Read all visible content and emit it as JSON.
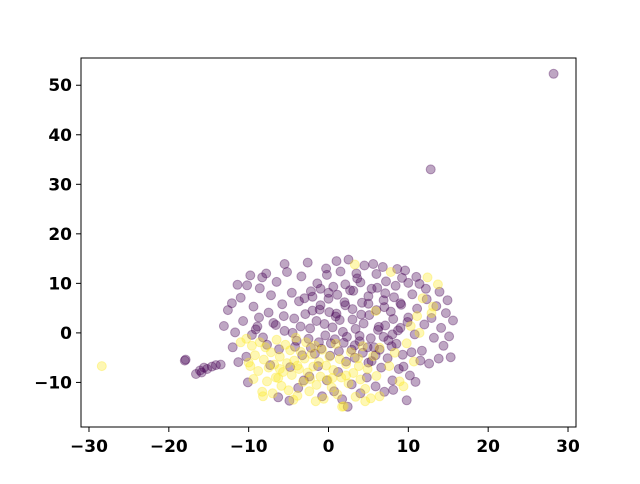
{
  "chart_data": {
    "type": "scatter",
    "title": "",
    "xlabel": "",
    "ylabel": "",
    "xlim": [
      -31,
      31
    ],
    "ylim": [
      -19,
      55.5
    ],
    "x_ticks": [
      -30,
      -20,
      -10,
      0,
      10,
      20,
      30
    ],
    "x_tick_labels": [
      "−30",
      "−20",
      "−10",
      "0",
      "10",
      "20",
      "30"
    ],
    "y_ticks": [
      -10,
      0,
      10,
      20,
      30,
      40,
      50
    ],
    "y_tick_labels": [
      "−10",
      "0",
      "10",
      "20",
      "30",
      "40",
      "50"
    ],
    "grid": false,
    "legend": "none",
    "point_alpha": 0.35,
    "colors": {
      "class_0": "#440154",
      "class_1": "#fde725"
    },
    "series": [
      {
        "color": "#440154",
        "points": [
          [
            28.2,
            52.3
          ],
          [
            12.8,
            33.0
          ],
          [
            -18.0,
            -5.6
          ],
          [
            -17.9,
            -5.4
          ],
          [
            -16.1,
            -7.6
          ],
          [
            -15.6,
            -7.0
          ],
          [
            -15.2,
            -7.3
          ],
          [
            -14.6,
            -6.8
          ],
          [
            -14.1,
            -6.5
          ],
          [
            -13.5,
            -6.4
          ],
          [
            -16.6,
            -8.3
          ],
          [
            -15.9,
            -8.0
          ],
          [
            -13.1,
            1.4
          ],
          [
            -12.6,
            4.6
          ],
          [
            -12.0,
            -2.9
          ],
          [
            -11.4,
            9.7
          ],
          [
            -11.7,
            0.1
          ],
          [
            -11.0,
            7.1
          ],
          [
            -10.3,
            -4.8
          ],
          [
            -10.7,
            2.4
          ],
          [
            -9.8,
            11.6
          ],
          [
            -9.4,
            5.3
          ],
          [
            -9.1,
            0.7
          ],
          [
            -8.6,
            9.0
          ],
          [
            -8.2,
            -0.9
          ],
          [
            -7.8,
            12.0
          ],
          [
            -7.5,
            4.1
          ],
          [
            -7.2,
            7.6
          ],
          [
            -6.9,
            2.0
          ],
          [
            -6.5,
            10.3
          ],
          [
            -6.2,
            -3.3
          ],
          [
            -5.8,
            5.8
          ],
          [
            -5.5,
            0.4
          ],
          [
            -5.2,
            12.3
          ],
          [
            -4.9,
            -13.7
          ],
          [
            -4.6,
            8.1
          ],
          [
            -4.3,
            2.9
          ],
          [
            -4.0,
            -1.6
          ],
          [
            -3.7,
            6.4
          ],
          [
            -3.4,
            11.4
          ],
          [
            -3.1,
            -9.6
          ],
          [
            -2.9,
            3.8
          ],
          [
            -2.6,
            14.2
          ],
          [
            -2.3,
            0.9
          ],
          [
            -2.0,
            7.3
          ],
          [
            -1.7,
            -4.2
          ],
          [
            -1.4,
            10.0
          ],
          [
            -1.1,
            4.7
          ],
          [
            -0.8,
            -12.8
          ],
          [
            -0.5,
            1.8
          ],
          [
            -0.3,
            13.0
          ],
          [
            0.0,
            6.9
          ],
          [
            0.3,
            -2.1
          ],
          [
            0.6,
            9.3
          ],
          [
            0.9,
            3.3
          ],
          [
            1.2,
            -7.9
          ],
          [
            1.5,
            12.4
          ],
          [
            1.8,
            0.2
          ],
          [
            2.1,
            5.6
          ],
          [
            2.4,
            -14.9
          ],
          [
            2.7,
            8.6
          ],
          [
            3.0,
            2.7
          ],
          [
            3.3,
            -5.0
          ],
          [
            3.6,
            11.0
          ],
          [
            3.9,
            -0.6
          ],
          [
            4.2,
            6.1
          ],
          [
            4.5,
            13.6
          ],
          [
            4.8,
            -9.0
          ],
          [
            5.1,
            3.6
          ],
          [
            5.4,
            8.9
          ],
          [
            5.7,
            -2.9
          ],
          [
            6.0,
            11.9
          ],
          [
            6.3,
            1.2
          ],
          [
            6.6,
            -7.0
          ],
          [
            6.9,
            6.6
          ],
          [
            7.2,
            10.4
          ],
          [
            7.5,
            -1.5
          ],
          [
            7.8,
            4.3
          ],
          [
            8.1,
            -11.5
          ],
          [
            8.4,
            9.5
          ],
          [
            8.7,
            0.5
          ],
          [
            9.0,
            6.0
          ],
          [
            9.3,
            -4.4
          ],
          [
            9.6,
            12.6
          ],
          [
            9.9,
            2.2
          ],
          [
            10.2,
            -8.6
          ],
          [
            10.5,
            7.8
          ],
          [
            10.8,
            -0.3
          ],
          [
            11.1,
            4.9
          ],
          [
            11.4,
            9.9
          ],
          [
            11.7,
            -3.6
          ],
          [
            12.0,
            1.7
          ],
          [
            12.3,
            6.8
          ],
          [
            12.6,
            -6.2
          ],
          [
            12.9,
            3.0
          ],
          [
            13.2,
            -1.0
          ],
          [
            13.5,
            5.4
          ],
          [
            13.8,
            -5.2
          ],
          [
            14.1,
            1.0
          ],
          [
            14.4,
            -2.6
          ],
          [
            14.7,
            4.0
          ],
          [
            15.1,
            -0.7
          ],
          [
            15.6,
            2.5
          ],
          [
            15.3,
            -4.9
          ],
          [
            14.9,
            6.6
          ],
          [
            13.9,
            8.3
          ],
          [
            -11.3,
            -5.9
          ],
          [
            -10.1,
            -10.0
          ],
          [
            -8.9,
            1.3
          ],
          [
            -7.3,
            -6.5
          ],
          [
            -6.3,
            -13.0
          ],
          [
            -4.8,
            -6.9
          ],
          [
            -3.8,
            -11.1
          ],
          [
            -2.4,
            -8.8
          ],
          [
            -1.3,
            -6.7
          ],
          [
            -0.2,
            -9.6
          ],
          [
            0.7,
            -11.8
          ],
          [
            1.7,
            -13.4
          ],
          [
            2.9,
            -10.4
          ],
          [
            4.0,
            -12.2
          ],
          [
            5.0,
            -6.0
          ],
          [
            5.9,
            -10.8
          ],
          [
            7.0,
            -11.9
          ],
          [
            8.0,
            -9.6
          ],
          [
            8.8,
            -7.3
          ],
          [
            9.8,
            -13.6
          ],
          [
            10.9,
            -9.9
          ],
          [
            -9.6,
            -0.4
          ],
          [
            -8.7,
            3.1
          ],
          [
            -7.7,
            -2.4
          ],
          [
            -6.6,
            1.6
          ],
          [
            -5.6,
            3.4
          ],
          [
            -4.5,
            0.0
          ],
          [
            -3.5,
            1.3
          ],
          [
            -2.5,
            -1.2
          ],
          [
            -1.5,
            2.4
          ],
          [
            -0.4,
            -0.5
          ],
          [
            0.5,
            1.1
          ],
          [
            1.4,
            2.6
          ],
          [
            2.3,
            -0.8
          ],
          [
            3.4,
            0.8
          ],
          [
            4.4,
            1.9
          ],
          [
            5.3,
            -1.1
          ],
          [
            6.2,
            0.6
          ],
          [
            7.1,
            1.5
          ],
          [
            8.0,
            -0.3
          ],
          [
            9.0,
            1.0
          ],
          [
            10.0,
            3.1
          ],
          [
            -2.0,
            4.5
          ],
          [
            -1.0,
            5.6
          ],
          [
            0.1,
            4.2
          ],
          [
            1.0,
            3.9
          ],
          [
            2.0,
            6.2
          ],
          [
            3.0,
            4.8
          ],
          [
            4.1,
            3.7
          ],
          [
            5.0,
            5.9
          ],
          [
            6.0,
            4.6
          ],
          [
            7.0,
            5.2
          ],
          [
            8.1,
            2.8
          ],
          [
            9.1,
            5.7
          ],
          [
            -3.0,
            7.0
          ],
          [
            -2.2,
            8.4
          ],
          [
            -1.0,
            8.9
          ],
          [
            0.0,
            8.1
          ],
          [
            1.1,
            7.7
          ],
          [
            2.1,
            9.8
          ],
          [
            3.1,
            8.5
          ],
          [
            4.0,
            10.2
          ],
          [
            5.0,
            7.4
          ],
          [
            6.1,
            9.1
          ],
          [
            7.1,
            8.0
          ],
          [
            8.2,
            7.2
          ],
          [
            -0.9,
            -3.2
          ],
          [
            0.2,
            -4.6
          ],
          [
            1.3,
            -3.7
          ],
          [
            2.2,
            -5.8
          ],
          [
            3.3,
            -2.5
          ],
          [
            4.3,
            -4.0
          ],
          [
            5.4,
            -5.7
          ],
          [
            6.4,
            -3.4
          ],
          [
            7.4,
            -5.1
          ],
          [
            8.5,
            -2.2
          ],
          [
            9.4,
            -6.8
          ],
          [
            10.4,
            -3.9
          ],
          [
            11.5,
            -5.6
          ],
          [
            -4.2,
            -2.8
          ],
          [
            -3.3,
            -4.5
          ],
          [
            -2.2,
            -3.0
          ],
          [
            -1.2,
            -1.9
          ],
          [
            0.8,
            -1.3
          ],
          [
            1.9,
            -2.0
          ],
          [
            2.9,
            -3.4
          ],
          [
            3.9,
            -1.7
          ],
          [
            4.9,
            -2.9
          ],
          [
            5.9,
            -4.5
          ],
          [
            6.9,
            -0.8
          ],
          [
            7.9,
            -2.7
          ],
          [
            2.5,
            14.8
          ],
          [
            3.5,
            12.0
          ],
          [
            1.0,
            14.5
          ],
          [
            -0.2,
            11.7
          ],
          [
            5.6,
            13.9
          ],
          [
            6.8,
            13.3
          ],
          [
            8.6,
            12.9
          ],
          [
            9.2,
            11.1
          ],
          [
            10.0,
            10.1
          ],
          [
            11.0,
            11.3
          ],
          [
            12.2,
            8.9
          ],
          [
            -5.5,
            13.9
          ],
          [
            -8.3,
            11.2
          ],
          [
            -10.2,
            9.6
          ],
          [
            -12.1,
            6.0
          ]
        ]
      },
      {
        "color": "#fde725",
        "points": [
          [
            -28.4,
            -6.7
          ],
          [
            -10.3,
            -1.2
          ],
          [
            -10.0,
            -6.0
          ],
          [
            -9.6,
            -2.6
          ],
          [
            -9.4,
            -9.3
          ],
          [
            -9.2,
            -4.5
          ],
          [
            -8.8,
            -7.7
          ],
          [
            -8.6,
            -1.9
          ],
          [
            -8.3,
            -11.9
          ],
          [
            -8.1,
            -5.4
          ],
          [
            -7.9,
            -2.9
          ],
          [
            -7.7,
            -9.8
          ],
          [
            -7.5,
            -7.0
          ],
          [
            -7.2,
            -3.9
          ],
          [
            -7.0,
            -12.2
          ],
          [
            -6.8,
            -6.4
          ],
          [
            -6.5,
            -1.4
          ],
          [
            -6.3,
            -9.1
          ],
          [
            -6.1,
            -4.8
          ],
          [
            -5.9,
            -10.7
          ],
          [
            -5.7,
            -7.9
          ],
          [
            -5.4,
            -2.4
          ],
          [
            -5.2,
            -6.1
          ],
          [
            -5.0,
            -11.6
          ],
          [
            -4.8,
            -3.5
          ],
          [
            -4.6,
            -8.5
          ],
          [
            -4.3,
            -5.6
          ],
          [
            -4.1,
            -1.0
          ],
          [
            -3.9,
            -12.7
          ],
          [
            -3.7,
            -7.3
          ],
          [
            -3.5,
            -3.8
          ],
          [
            -3.2,
            -9.9
          ],
          [
            -3.0,
            -5.2
          ],
          [
            -2.8,
            -1.9
          ],
          [
            -2.6,
            -8.0
          ],
          [
            -2.4,
            -11.8
          ],
          [
            -2.1,
            -4.3
          ],
          [
            -1.9,
            -6.8
          ],
          [
            -1.7,
            -2.6
          ],
          [
            -1.5,
            -10.5
          ],
          [
            -1.2,
            -5.9
          ],
          [
            -1.0,
            -8.8
          ],
          [
            -0.8,
            -3.4
          ],
          [
            -0.6,
            -13.3
          ],
          [
            -0.3,
            -6.6
          ],
          [
            -0.1,
            -9.5
          ],
          [
            0.1,
            -4.8
          ],
          [
            0.4,
            -11.0
          ],
          [
            0.6,
            -7.5
          ],
          [
            0.9,
            -2.2
          ],
          [
            1.1,
            -12.4
          ],
          [
            1.4,
            -5.3
          ],
          [
            1.6,
            -9.0
          ],
          [
            1.9,
            -14.8
          ],
          [
            2.2,
            -6.3
          ],
          [
            2.5,
            -10.2
          ],
          [
            2.8,
            -3.9
          ],
          [
            3.1,
            -8.1
          ],
          [
            3.4,
            -12.9
          ],
          [
            3.7,
            -5.1
          ],
          [
            4.0,
            -9.4
          ],
          [
            4.3,
            -2.7
          ],
          [
            4.6,
            -11.3
          ],
          [
            4.9,
            -7.3
          ],
          [
            5.3,
            -13.2
          ],
          [
            5.6,
            -4.7
          ],
          [
            6.0,
            -8.7
          ],
          [
            6.4,
            -3.0
          ],
          [
            7.6,
            -6.7
          ],
          [
            8.3,
            -4.0
          ],
          [
            8.9,
            -9.8
          ],
          [
            9.4,
            -10.8
          ],
          [
            9.8,
            -2.1
          ],
          [
            10.3,
            1.4
          ],
          [
            10.7,
            -5.8
          ],
          [
            11.1,
            3.4
          ],
          [
            11.8,
            7.0
          ],
          [
            12.4,
            11.2
          ],
          [
            13.1,
            5.3
          ],
          [
            13.7,
            9.8
          ],
          [
            12.9,
            4.0
          ],
          [
            11.4,
            0.0
          ],
          [
            3.3,
            13.8
          ],
          [
            5.9,
            4.4
          ],
          [
            7.8,
            12.3
          ],
          [
            -8.2,
            -12.8
          ],
          [
            -6.6,
            -9.0
          ],
          [
            -4.4,
            -13.5
          ],
          [
            -1.6,
            -13.8
          ],
          [
            1.7,
            -14.9
          ],
          [
            4.6,
            -13.8
          ],
          [
            6.4,
            -12.8
          ],
          [
            -11.0,
            -1.9
          ],
          [
            -9.8,
            -6.7
          ],
          [
            -6.1,
            -7.3
          ],
          [
            -3.9,
            -6.6
          ],
          [
            -2.3,
            -9.3
          ],
          [
            0.5,
            -9.1
          ],
          [
            2.2,
            -8.6
          ],
          [
            3.8,
            -6.7
          ]
        ]
      }
    ]
  }
}
